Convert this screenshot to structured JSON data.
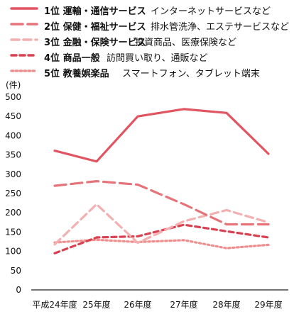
{
  "legend": [
    {
      "rank": "1位 運輸・通信サービス",
      "desc": "インターネットサービスなど"
    },
    {
      "rank": "2位 保健・福祉サービス",
      "desc": "排水管洗浄、エステサービスなど"
    },
    {
      "rank": "3位 金融・保険サービス",
      "desc": "投資商品、医療保険など"
    },
    {
      "rank": "4位 商品一般",
      "desc": "訪問買い取り、通販など"
    },
    {
      "rank": "5位 教養娯楽品",
      "desc": "スマートフォン、タブレット端末"
    }
  ],
  "chart_data": {
    "type": "line",
    "ylabel": "(件)",
    "ylim": [
      0,
      500
    ],
    "yticks": [
      0,
      50,
      100,
      150,
      200,
      250,
      300,
      350,
      400,
      450,
      500
    ],
    "categories": [
      "平成24年度",
      "25年度",
      "26年度",
      "27年度",
      "28年度",
      "29年度"
    ],
    "series": [
      {
        "name": "1位 運輸・通信サービス",
        "color": "#e05561",
        "style": "solid",
        "values": [
          361,
          333,
          450,
          469,
          459,
          353
        ]
      },
      {
        "name": "2位 保健・福祉サービス",
        "color": "#e6737a",
        "style": "longdash",
        "values": [
          270,
          282,
          273,
          222,
          170,
          170
        ]
      },
      {
        "name": "3位 金融・保険サービス",
        "color": "#f2b0b0",
        "style": "dash",
        "values": [
          118,
          222,
          122,
          178,
          207,
          175
        ]
      },
      {
        "name": "4位 商品一般",
        "color": "#d94150",
        "style": "shortdash",
        "values": [
          95,
          136,
          139,
          169,
          152,
          136
        ]
      },
      {
        "name": "5位 教養娯楽品",
        "color": "#ee8f8f",
        "style": "dot",
        "values": [
          123,
          130,
          124,
          129,
          108,
          117
        ]
      }
    ],
    "grid": false
  }
}
